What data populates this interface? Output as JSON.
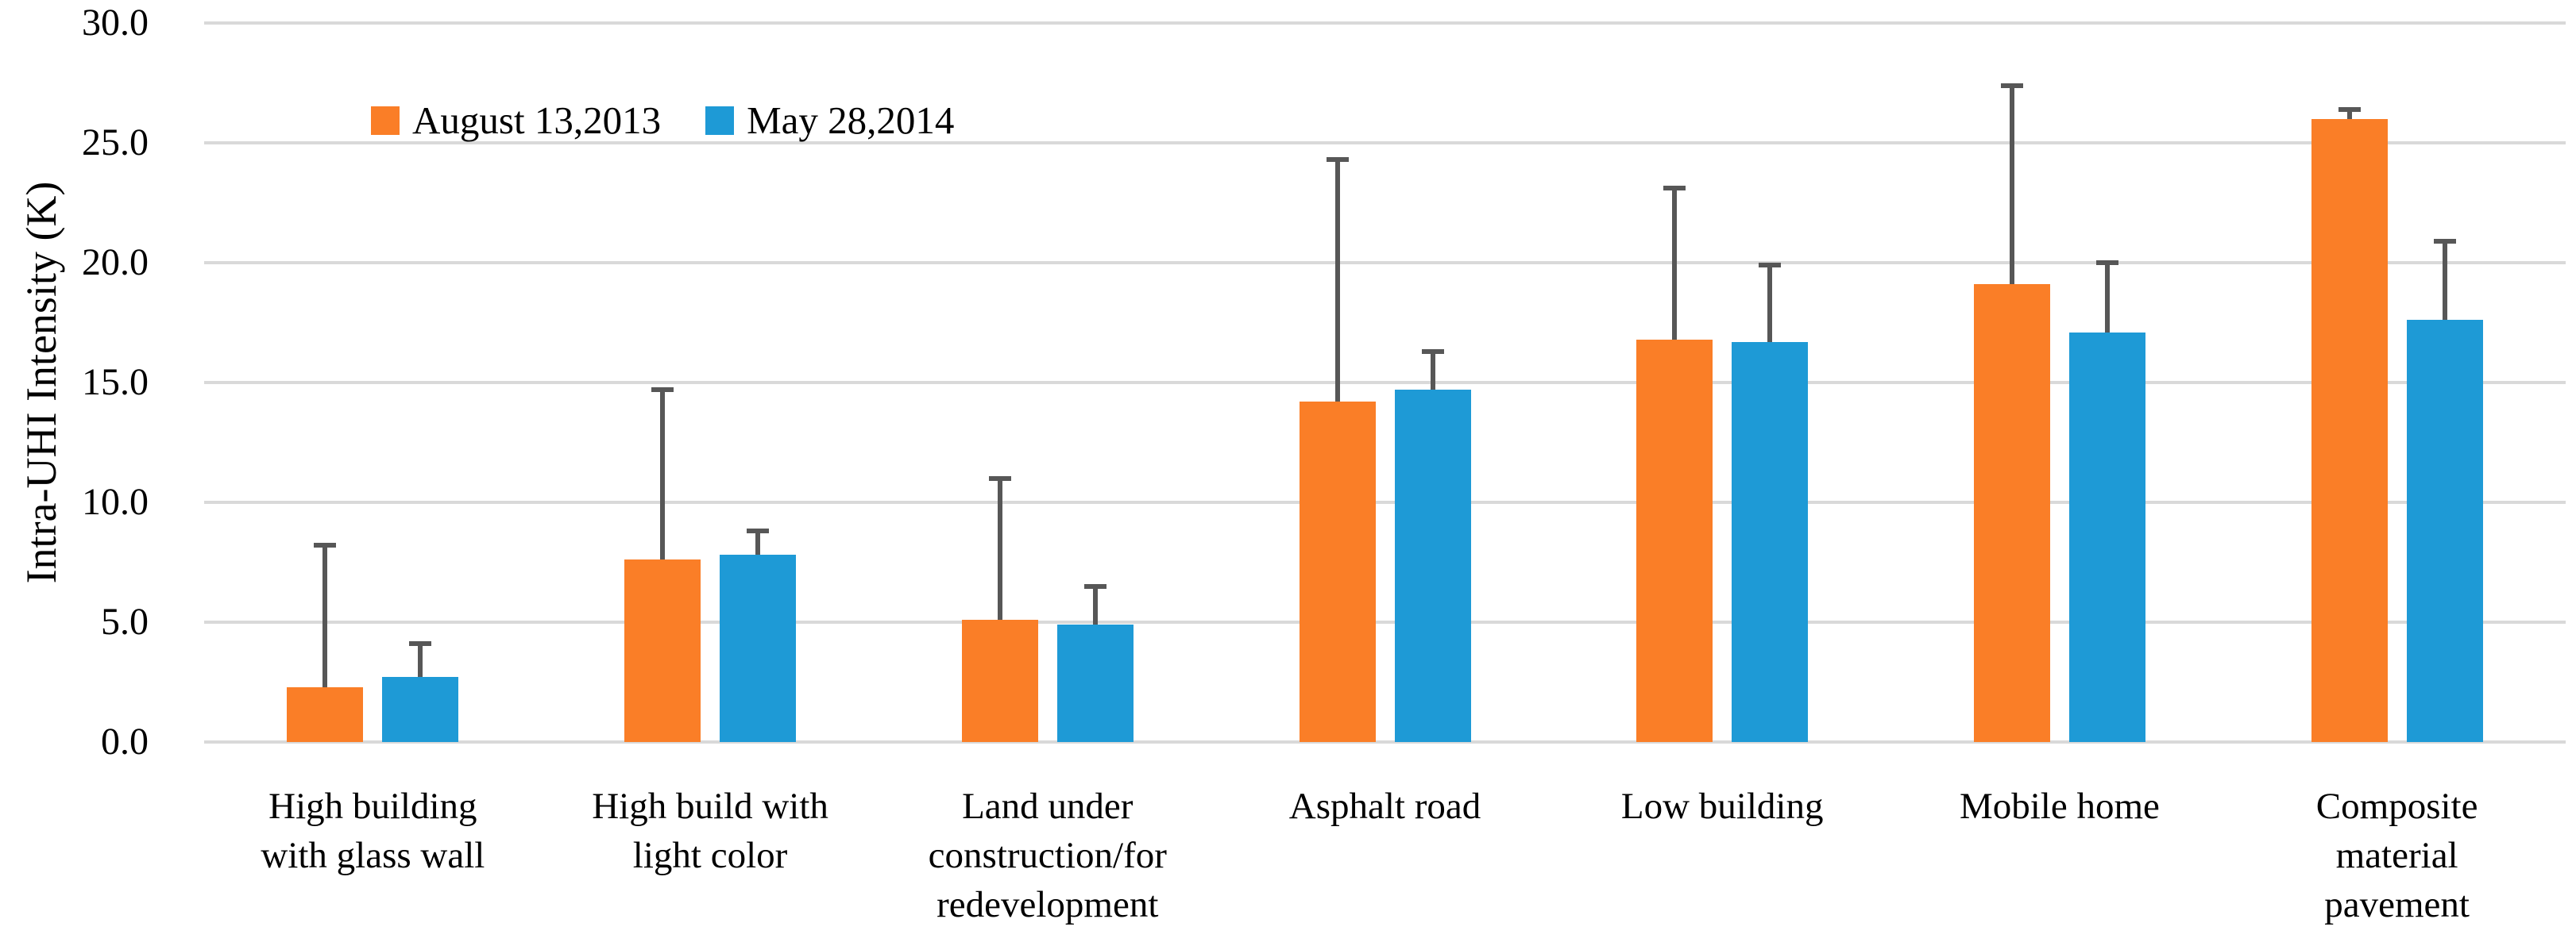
{
  "chart_data": {
    "type": "bar",
    "title": "",
    "xlabel": "",
    "ylabel": "Intra-UHI Intensity (K)",
    "ylim": [
      0,
      30
    ],
    "ytick_values": [
      0,
      5,
      10,
      15,
      20,
      25,
      30
    ],
    "ytick_labels": [
      "0.0",
      "5.0",
      "10.0",
      "15.0",
      "20.0",
      "25.0",
      "30.0"
    ],
    "grid": "horizontal",
    "gridline_color": "#D9D9D9",
    "error_bar_color": "#575757",
    "legend_position": "inside-top-left",
    "categories": [
      [
        "High building",
        "with glass wall"
      ],
      [
        "High build with",
        "light color"
      ],
      [
        "Land under",
        "construction/for",
        "redevelopment"
      ],
      [
        "Asphalt road"
      ],
      [
        "Low building"
      ],
      [
        "Mobile home"
      ],
      [
        "Composite",
        "material",
        "pavement"
      ]
    ],
    "series": [
      {
        "name": "August 13,2013",
        "color": "#FA7E27",
        "values": [
          2.3,
          7.6,
          5.1,
          14.2,
          16.8,
          19.1,
          26.0
        ],
        "error_plus": [
          5.9,
          7.1,
          5.9,
          10.1,
          6.3,
          8.3,
          0.4
        ]
      },
      {
        "name": "May 28,2014",
        "color": "#1E9AD6",
        "values": [
          2.7,
          7.8,
          4.9,
          14.7,
          16.7,
          17.1,
          17.6
        ],
        "error_plus": [
          1.4,
          1.0,
          1.6,
          1.6,
          3.2,
          2.9,
          3.3
        ]
      }
    ]
  }
}
